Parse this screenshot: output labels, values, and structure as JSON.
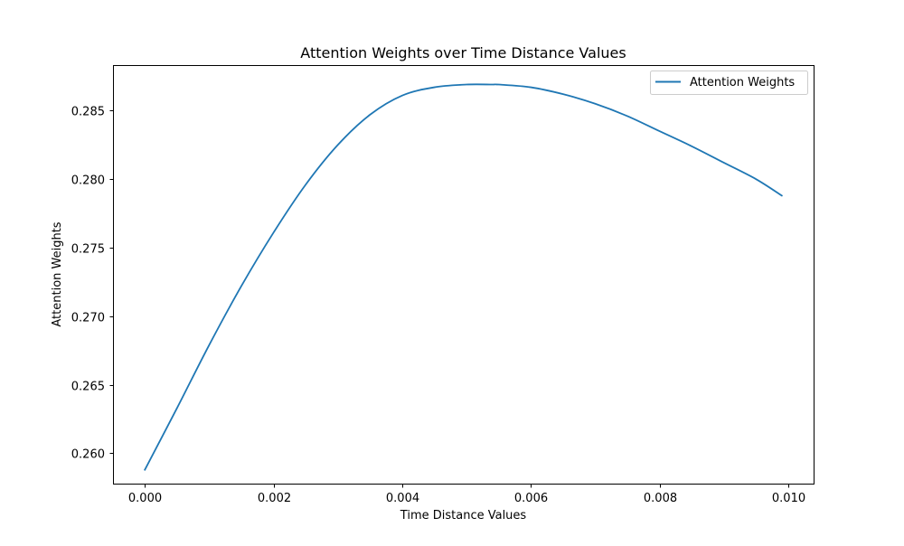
{
  "chart_data": {
    "type": "line",
    "title": "Attention Weights over Time Distance Values",
    "xlabel": "Time Distance Values",
    "ylabel": "Attention Weights",
    "xlim": [
      -0.000495,
      0.010395
    ],
    "ylim": [
      0.25779,
      0.28832
    ],
    "xticks": [
      0.0,
      0.002,
      0.004,
      0.006,
      0.008,
      0.01
    ],
    "xtick_labels": [
      "0.000",
      "0.002",
      "0.004",
      "0.006",
      "0.008",
      "0.010"
    ],
    "yticks": [
      0.26,
      0.265,
      0.27,
      0.275,
      0.28,
      0.285
    ],
    "ytick_labels": [
      "0.260",
      "0.265",
      "0.270",
      "0.275",
      "0.280",
      "0.285"
    ],
    "grid": false,
    "legend_position": "top-right",
    "series": [
      {
        "name": "Attention Weights",
        "color": "#1f77b4",
        "x": [
          0.0,
          0.0005,
          0.001,
          0.0015,
          0.002,
          0.0025,
          0.003,
          0.0035,
          0.004,
          0.0045,
          0.005,
          0.0054,
          0.0055,
          0.006,
          0.0065,
          0.007,
          0.0075,
          0.008,
          0.0085,
          0.009,
          0.0095,
          0.0099
        ],
        "y": [
          0.2588,
          0.2633,
          0.2679,
          0.2722,
          0.2761,
          0.2796,
          0.2825,
          0.2847,
          0.2861,
          0.2867,
          0.2869,
          0.2869,
          0.2869,
          0.2867,
          0.2862,
          0.2855,
          0.2846,
          0.2835,
          0.2824,
          0.2812,
          0.28,
          0.2788
        ]
      }
    ]
  }
}
